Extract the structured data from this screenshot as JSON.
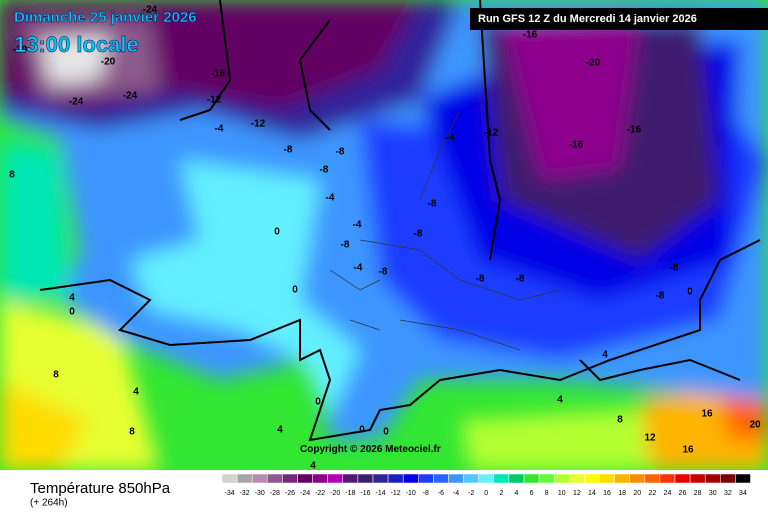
{
  "header": {
    "date": "Dimanche 25 janvier 2026",
    "time": "13:00 locale",
    "run": "Run GFS 12 Z du Mercredi 14 janvier 2026"
  },
  "footer": {
    "title": "Température 850hPa",
    "lead": "(+ 264h)",
    "copyright": "Copyright © 2026 Meteociel.fr"
  },
  "legend": {
    "ticks": [
      -34,
      -32,
      -30,
      -28,
      -26,
      -24,
      -22,
      -20,
      -18,
      -16,
      -14,
      -12,
      -10,
      -8,
      -6,
      -4,
      -2,
      0,
      2,
      4,
      6,
      8,
      10,
      12,
      14,
      16,
      18,
      20,
      22,
      24,
      26,
      28,
      30,
      32,
      34
    ],
    "colors": [
      "#d2d2d2",
      "#a5a5a5",
      "#b48cb4",
      "#8c5a8c",
      "#78287a",
      "#640064",
      "#8c008c",
      "#b400b4",
      "#5a1478",
      "#3c1e6e",
      "#32249b",
      "#1e1ec8",
      "#0000e6",
      "#1e3cff",
      "#2864ff",
      "#3c96ff",
      "#50c8ff",
      "#64f0ff",
      "#00e6b4",
      "#00c864",
      "#32e632",
      "#64ff32",
      "#b4ff32",
      "#e6ff32",
      "#ffff00",
      "#ffdc00",
      "#ffb400",
      "#ff8c00",
      "#ff6400",
      "#ff3200",
      "#e60000",
      "#c80000",
      "#a00000",
      "#780000",
      "#000000"
    ]
  },
  "contour_labels": [
    "-24",
    "-20",
    "-16",
    "-12",
    "-4",
    "-12",
    "-8",
    "-8",
    "-8",
    "-4",
    "0",
    "0",
    "-4",
    "-8",
    "-4",
    "-8",
    "-8",
    "-8",
    "-4",
    "-12",
    "-16",
    "-20",
    "-16",
    "-16",
    "-8",
    "-8",
    "-8",
    "-8",
    "0",
    "4",
    "4",
    "12",
    "16",
    "16",
    "20",
    "4",
    "0",
    "4",
    "8",
    "8",
    "8",
    "0",
    "4",
    "4",
    "0",
    "0",
    "8",
    "-24",
    "-20",
    "-24"
  ]
}
